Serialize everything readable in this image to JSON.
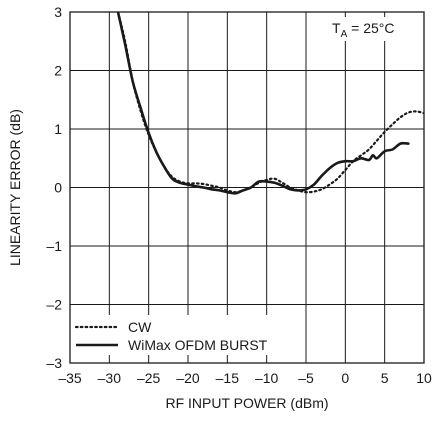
{
  "chart_data": {
    "type": "line",
    "title": "",
    "xlabel": "RF INPUT POWER (dBm)",
    "ylabel": "LINEARITY ERROR (dB)",
    "xlim": [
      -35,
      10
    ],
    "ylim": [
      -3,
      3
    ],
    "xticks": [
      -35,
      -30,
      -25,
      -20,
      -15,
      -10,
      -5,
      0,
      5,
      10
    ],
    "yticks": [
      3,
      2,
      1,
      0,
      -1,
      -2,
      -3
    ],
    "grid": true,
    "legend_position": "bottom-left",
    "annotation": {
      "main": "T",
      "sub": "A",
      "rest": " = 25°C"
    },
    "series": [
      {
        "name": "CW",
        "style": "dotted",
        "color": "#1a1a1a",
        "points": [
          [
            -28.9,
            3.0
          ],
          [
            -28.0,
            2.5
          ],
          [
            -27.0,
            1.8
          ],
          [
            -26.0,
            1.3
          ],
          [
            -25.0,
            0.9
          ],
          [
            -24.0,
            0.6
          ],
          [
            -23.0,
            0.35
          ],
          [
            -22.0,
            0.18
          ],
          [
            -21.0,
            0.1
          ],
          [
            -20.0,
            0.07
          ],
          [
            -19.0,
            0.07
          ],
          [
            -18.0,
            0.06
          ],
          [
            -17.0,
            0.03
          ],
          [
            -16.0,
            0.0
          ],
          [
            -15.0,
            -0.05
          ],
          [
            -14.0,
            -0.08
          ],
          [
            -13.0,
            -0.05
          ],
          [
            -12.0,
            0.0
          ],
          [
            -11.0,
            0.08
          ],
          [
            -10.0,
            0.13
          ],
          [
            -9.0,
            0.15
          ],
          [
            -8.0,
            0.08
          ],
          [
            -7.0,
            0.0
          ],
          [
            -6.0,
            -0.05
          ],
          [
            -5.0,
            -0.08
          ],
          [
            -4.0,
            -0.07
          ],
          [
            -3.0,
            -0.03
          ],
          [
            -2.0,
            0.05
          ],
          [
            -1.0,
            0.15
          ],
          [
            0.0,
            0.3
          ],
          [
            1.0,
            0.45
          ],
          [
            2.0,
            0.55
          ],
          [
            3.0,
            0.65
          ],
          [
            4.0,
            0.8
          ],
          [
            5.0,
            0.95
          ],
          [
            6.0,
            1.08
          ],
          [
            7.0,
            1.2
          ],
          [
            8.0,
            1.28
          ],
          [
            9.0,
            1.3
          ],
          [
            10.0,
            1.27
          ]
        ]
      },
      {
        "name": "WiMax OFDM BURST",
        "style": "solid",
        "color": "#1a1a1a",
        "points": [
          [
            -28.9,
            3.0
          ],
          [
            -28.0,
            2.45
          ],
          [
            -27.0,
            1.8
          ],
          [
            -26.0,
            1.35
          ],
          [
            -25.0,
            0.93
          ],
          [
            -24.0,
            0.6
          ],
          [
            -23.0,
            0.35
          ],
          [
            -22.0,
            0.15
          ],
          [
            -21.0,
            0.08
          ],
          [
            -20.0,
            0.05
          ],
          [
            -19.0,
            0.02
          ],
          [
            -18.0,
            0.0
          ],
          [
            -17.0,
            -0.03
          ],
          [
            -16.0,
            -0.05
          ],
          [
            -15.0,
            -0.08
          ],
          [
            -14.0,
            -0.1
          ],
          [
            -13.0,
            -0.05
          ],
          [
            -12.0,
            0.0
          ],
          [
            -11.0,
            0.1
          ],
          [
            -10.0,
            0.1
          ],
          [
            -9.0,
            0.08
          ],
          [
            -8.0,
            0.03
          ],
          [
            -7.0,
            -0.03
          ],
          [
            -6.0,
            -0.05
          ],
          [
            -5.0,
            -0.03
          ],
          [
            -4.0,
            0.05
          ],
          [
            -3.0,
            0.2
          ],
          [
            -2.0,
            0.33
          ],
          [
            -1.0,
            0.42
          ],
          [
            0.0,
            0.45
          ],
          [
            1.0,
            0.45
          ],
          [
            2.0,
            0.5
          ],
          [
            3.0,
            0.47
          ],
          [
            3.5,
            0.55
          ],
          [
            4.0,
            0.5
          ],
          [
            5.0,
            0.62
          ],
          [
            6.0,
            0.65
          ],
          [
            7.0,
            0.75
          ],
          [
            8.0,
            0.75
          ]
        ]
      }
    ]
  }
}
